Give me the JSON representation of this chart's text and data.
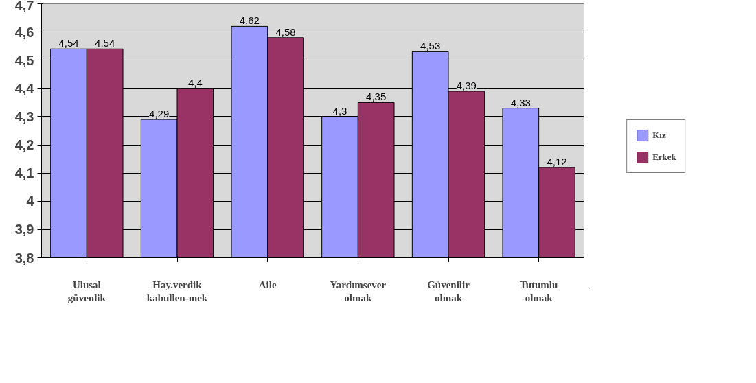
{
  "chart_data": {
    "type": "bar",
    "categories": [
      "Ulusal güvenlik",
      "Hay.verdik kabullen-mek",
      "Aile",
      "Yardımsever olmak",
      "Güvenilir olmak",
      "Tutumlu olmak"
    ],
    "series": [
      {
        "name": "Kız",
        "color": "#9999ff",
        "values": [
          4.54,
          4.29,
          4.62,
          4.3,
          4.53,
          4.33
        ],
        "value_labels": [
          "4,54",
          "4,29",
          "4,62",
          "4,3",
          "4,53",
          "4,33"
        ]
      },
      {
        "name": "Erkek",
        "color": "#993366",
        "values": [
          4.54,
          4.4,
          4.58,
          4.35,
          4.39,
          4.12
        ],
        "value_labels": [
          "4,54",
          "4,4",
          "4,58",
          "4,35",
          "4,39",
          "4,12"
        ]
      }
    ],
    "ylim": [
      3.8,
      4.7
    ],
    "yticks": [
      {
        "value": 3.8,
        "label": "3,8"
      },
      {
        "value": 3.9,
        "label": "3,9"
      },
      {
        "value": 4,
        "label": "4"
      },
      {
        "value": 4.1,
        "label": "4,1"
      },
      {
        "value": 4.2,
        "label": "4,2"
      },
      {
        "value": 4.3,
        "label": "4,3"
      },
      {
        "value": 4.4,
        "label": "4,4"
      },
      {
        "value": 4.5,
        "label": "4,5"
      },
      {
        "value": 4.6,
        "label": "4,6"
      },
      {
        "value": 4.7,
        "label": "4,7"
      }
    ],
    "grid": "y",
    "legend": "right"
  }
}
